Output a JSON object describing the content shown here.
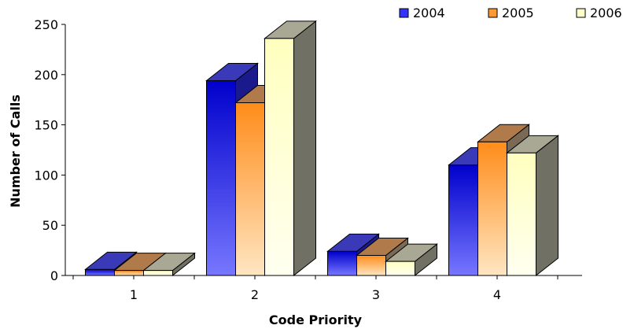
{
  "chart_data": {
    "type": "bar",
    "title": "",
    "xlabel": "Code Priority",
    "ylabel": "Number of Calls",
    "categories": [
      "1",
      "2",
      "3",
      "4"
    ],
    "ylim": [
      0,
      250
    ],
    "yticks": [
      "0",
      "50",
      "100",
      "150",
      "200",
      "250"
    ],
    "grid": false,
    "legend_position": "top-right",
    "series": [
      {
        "name": "2004",
        "values": [
          6,
          194,
          24,
          110
        ],
        "color": "#3333ff"
      },
      {
        "name": "2005",
        "values": [
          5,
          172,
          20,
          133
        ],
        "color": "#ff9933"
      },
      {
        "name": "2006",
        "values": [
          5,
          236,
          14,
          122
        ],
        "color": "#ffffcc"
      }
    ]
  }
}
